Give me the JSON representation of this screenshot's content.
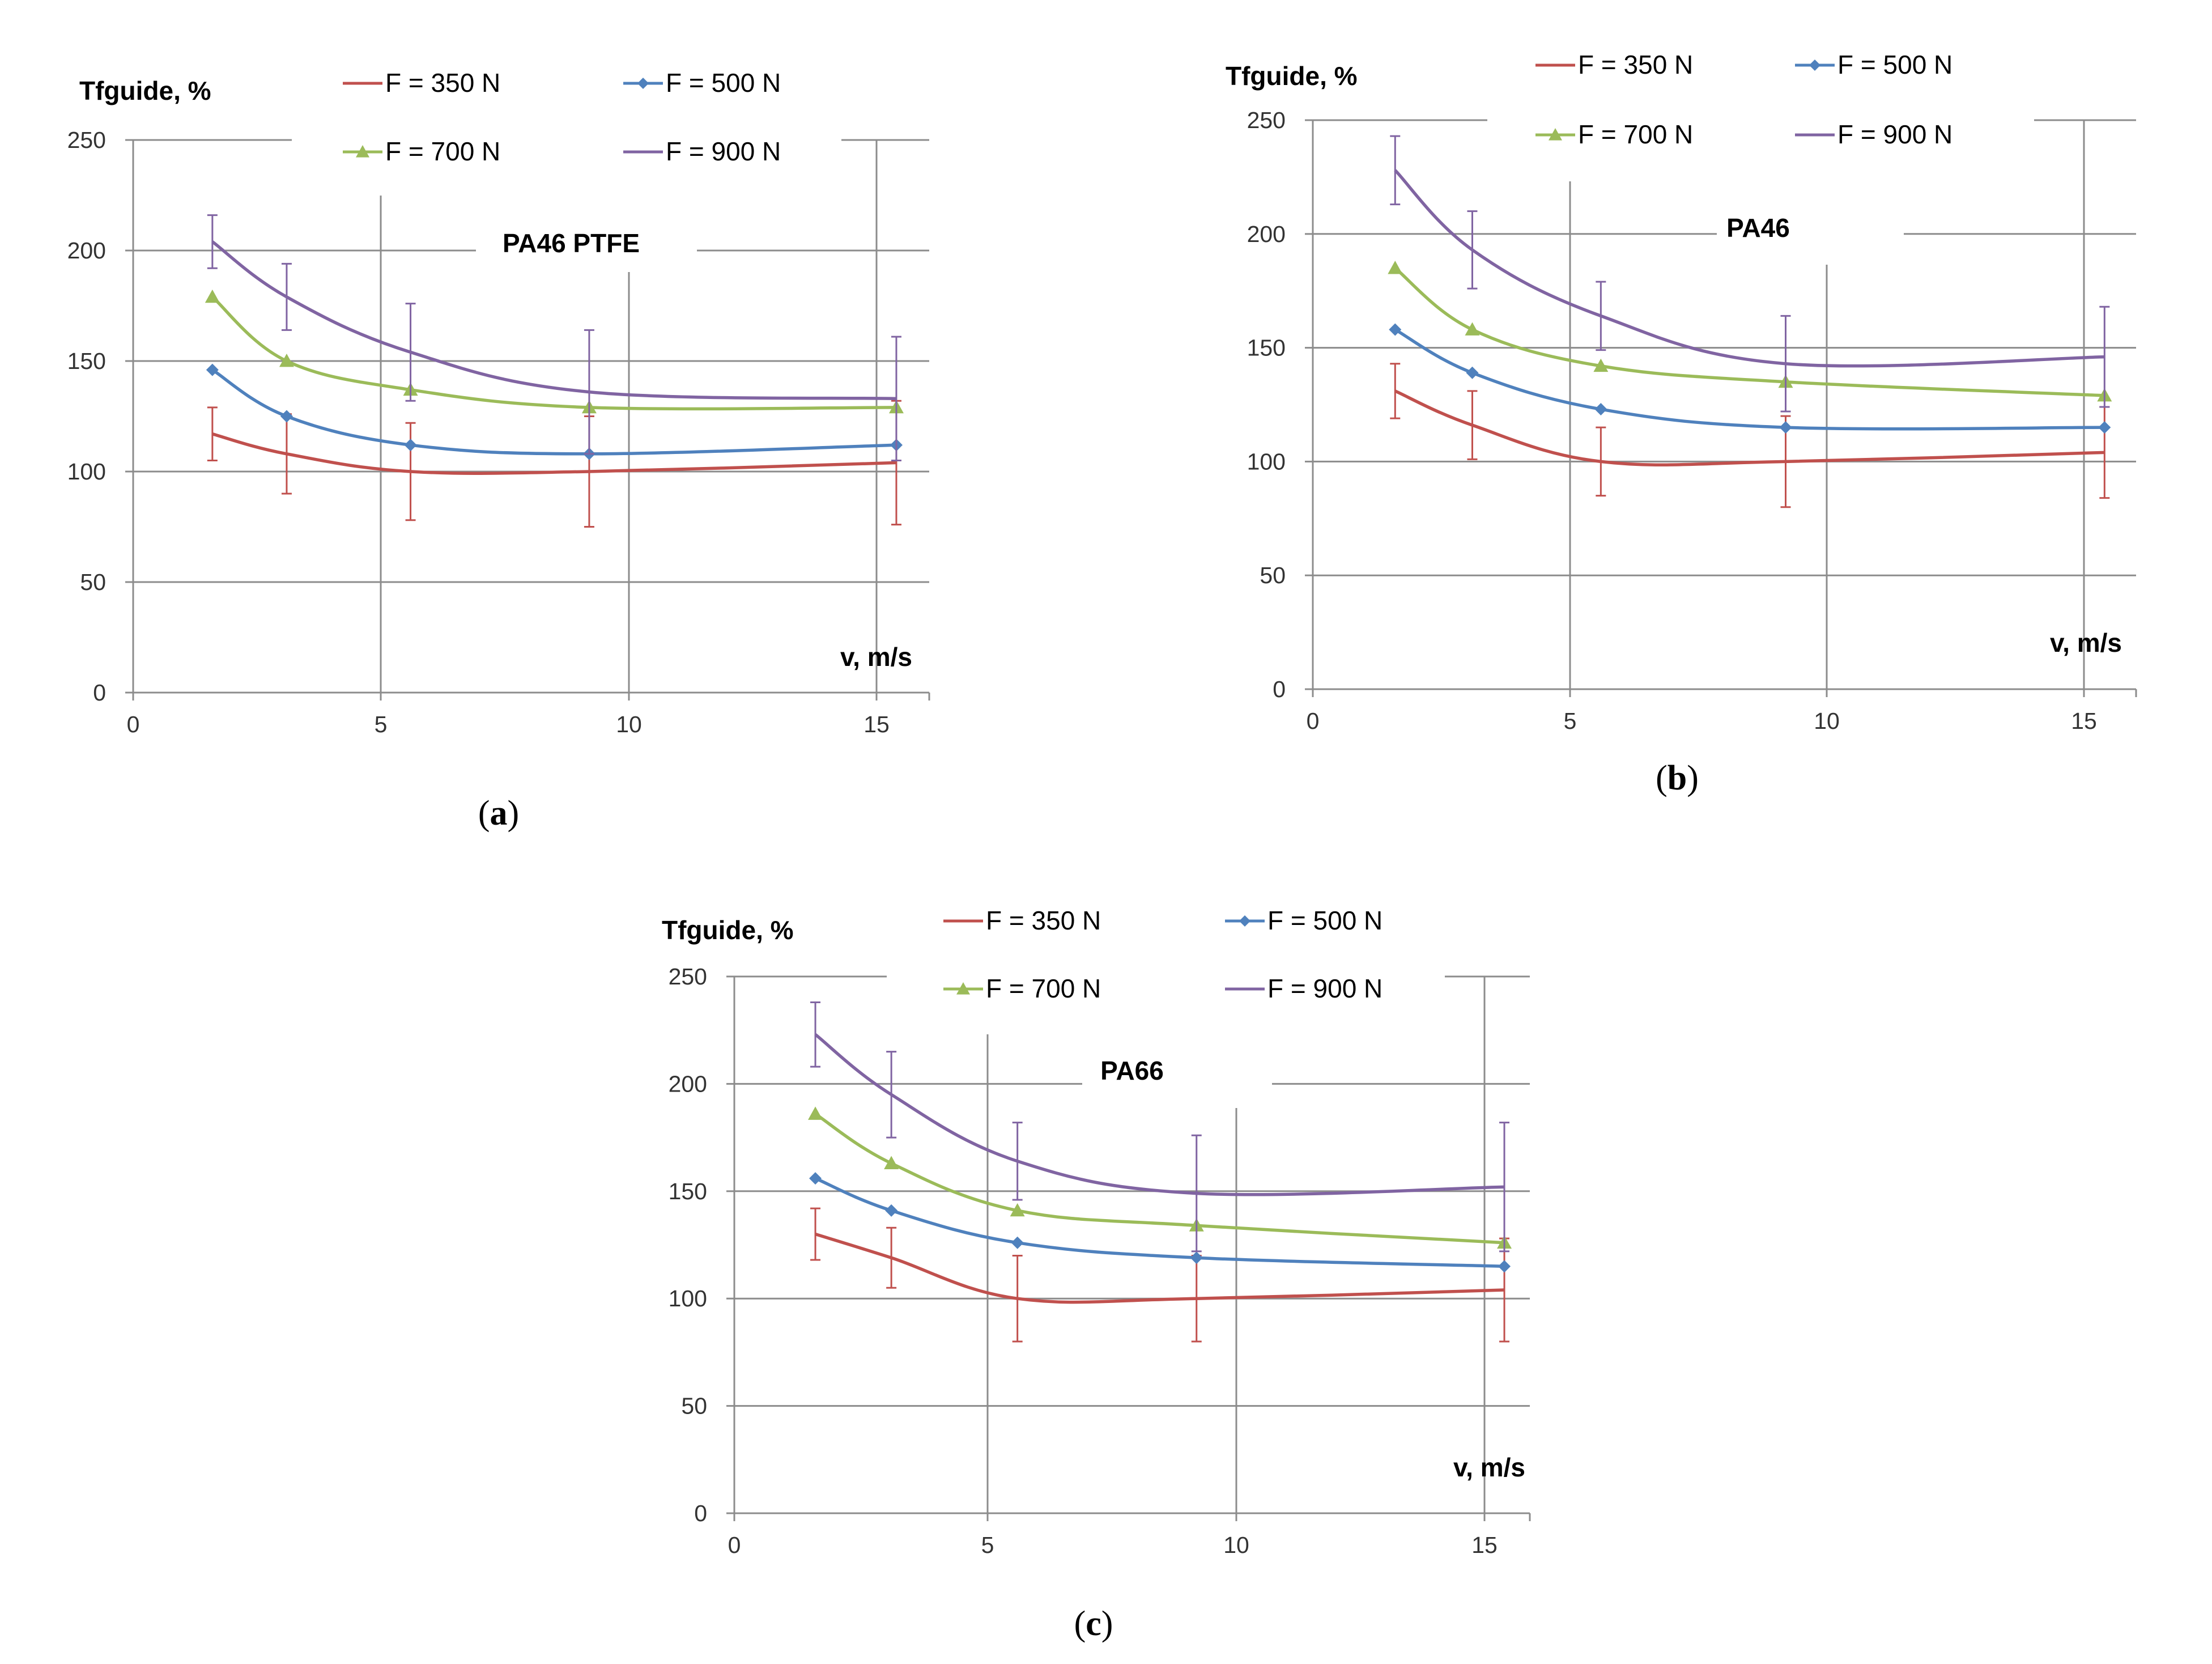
{
  "chart_data": [
    {
      "type": "line",
      "title": "PA46 PTFE",
      "caption": "a",
      "xlabel": "v, m/s",
      "ylabel": "Tfguide, %",
      "xlim": [
        0,
        16
      ],
      "ylim": [
        0,
        250
      ],
      "xticks": [
        "0",
        "5",
        "10",
        "15"
      ],
      "yticks": [
        "0",
        "50",
        "100",
        "150",
        "200",
        "250"
      ],
      "x": [
        1.6,
        3.1,
        5.6,
        9.2,
        15.4
      ],
      "series": [
        {
          "name": "F = 350 N",
          "color": "#c0504d",
          "marker": "none",
          "values": [
            117,
            108,
            100,
            100,
            104
          ],
          "err": [
            12,
            18,
            22,
            25,
            28
          ]
        },
        {
          "name": "F = 500 N",
          "color": "#4f81bd",
          "marker": "diamond",
          "values": [
            146,
            125,
            112,
            108,
            112
          ],
          "err": [
            0,
            0,
            0,
            0,
            0
          ]
        },
        {
          "name": "F = 700 N",
          "color": "#9bbb59",
          "marker": "triangle",
          "values": [
            179,
            150,
            137,
            129,
            129
          ],
          "err": [
            0,
            0,
            0,
            0,
            0
          ]
        },
        {
          "name": "F = 900 N",
          "color": "#8064a2",
          "marker": "none",
          "values": [
            204,
            179,
            154,
            136,
            133
          ],
          "err": [
            12,
            15,
            22,
            28,
            28
          ]
        }
      ]
    },
    {
      "type": "line",
      "title": "PA46",
      "caption": "b",
      "xlabel": "v, m/s",
      "ylabel": "Tfguide, %",
      "xlim": [
        0,
        16
      ],
      "ylim": [
        0,
        250
      ],
      "xticks": [
        "0",
        "5",
        "10",
        "15"
      ],
      "yticks": [
        "0",
        "50",
        "100",
        "150",
        "200",
        "250"
      ],
      "x": [
        1.6,
        3.1,
        5.6,
        9.2,
        15.4
      ],
      "series": [
        {
          "name": "F = 350 N",
          "color": "#c0504d",
          "marker": "none",
          "values": [
            131,
            116,
            100,
            100,
            104
          ],
          "err": [
            12,
            15,
            15,
            20,
            20
          ]
        },
        {
          "name": "F = 500 N",
          "color": "#4f81bd",
          "marker": "diamond",
          "values": [
            158,
            139,
            123,
            115,
            115
          ],
          "err": [
            0,
            0,
            0,
            0,
            0
          ]
        },
        {
          "name": "F = 700 N",
          "color": "#9bbb59",
          "marker": "triangle",
          "values": [
            185,
            158,
            142,
            135,
            129
          ],
          "err": [
            0,
            0,
            0,
            0,
            0
          ]
        },
        {
          "name": "F = 900 N",
          "color": "#8064a2",
          "marker": "none",
          "values": [
            228,
            193,
            164,
            143,
            146
          ],
          "err": [
            15,
            17,
            15,
            21,
            22
          ]
        }
      ]
    },
    {
      "type": "line",
      "title": "PA66",
      "caption": "c",
      "xlabel": "v, m/s",
      "ylabel": "Tfguide, %",
      "xlim": [
        0,
        16
      ],
      "ylim": [
        0,
        250
      ],
      "xticks": [
        "0",
        "5",
        "10",
        "15"
      ],
      "yticks": [
        "0",
        "50",
        "100",
        "150",
        "200",
        "250"
      ],
      "x": [
        1.6,
        3.1,
        5.6,
        9.2,
        15.4
      ],
      "series": [
        {
          "name": "F = 350 N",
          "color": "#c0504d",
          "marker": "none",
          "values": [
            130,
            119,
            100,
            100,
            104
          ],
          "err": [
            12,
            14,
            20,
            20,
            24
          ]
        },
        {
          "name": "F = 500 N",
          "color": "#4f81bd",
          "marker": "diamond",
          "values": [
            156,
            141,
            126,
            119,
            115
          ],
          "err": [
            0,
            0,
            0,
            0,
            0
          ]
        },
        {
          "name": "F = 700 N",
          "color": "#9bbb59",
          "marker": "triangle",
          "values": [
            186,
            163,
            141,
            134,
            126
          ],
          "err": [
            0,
            0,
            0,
            0,
            0
          ]
        },
        {
          "name": "F = 900 N",
          "color": "#8064a2",
          "marker": "none",
          "values": [
            223,
            195,
            164,
            149,
            152
          ],
          "err": [
            15,
            20,
            18,
            27,
            30
          ]
        }
      ]
    }
  ]
}
